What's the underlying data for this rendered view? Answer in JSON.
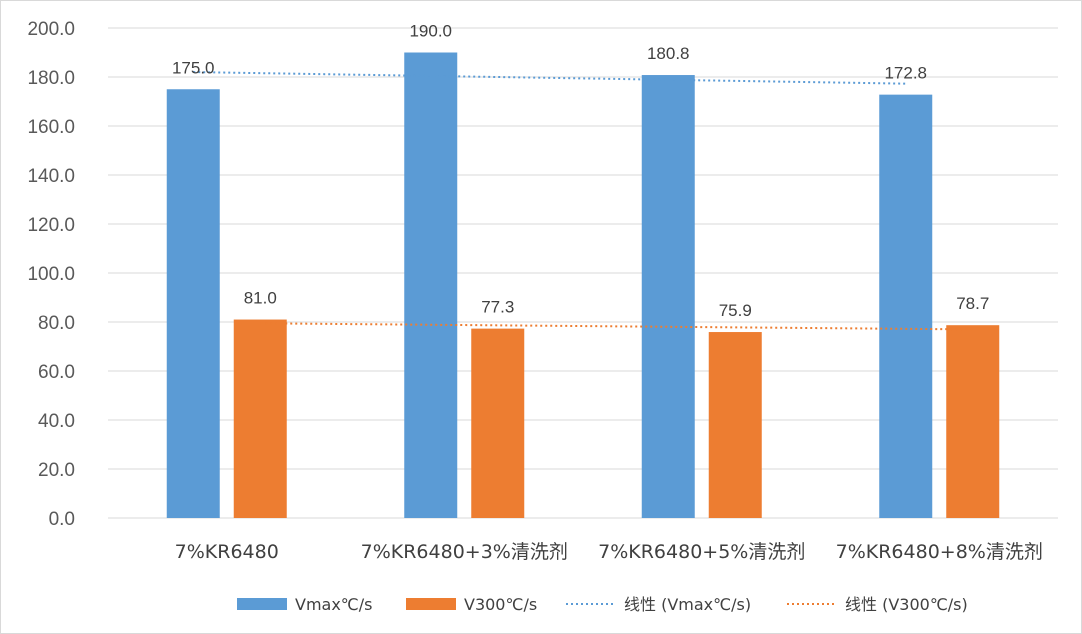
{
  "chart_data": {
    "type": "bar",
    "categories": [
      "7%KR6480",
      "7%KR6480+3%清洗剂",
      "7%KR6480+5%清洗剂",
      "7%KR6480+8%清洗剂"
    ],
    "series": [
      {
        "name": "Vmax℃/s",
        "color": "#5b9bd5",
        "values": [
          175.0,
          190.0,
          180.8,
          172.8
        ]
      },
      {
        "name": "V300℃/s",
        "color": "#ed7d31",
        "values": [
          81.0,
          77.3,
          75.9,
          78.7
        ]
      }
    ],
    "trendlines": [
      {
        "name": "线性 (Vmax℃/s)",
        "series": 0,
        "style": "dotted",
        "color": "#5b9bd5"
      },
      {
        "name": "线性 (V300℃/s)",
        "series": 1,
        "style": "dotted",
        "color": "#ed7d31"
      }
    ],
    "y_ticks": [
      "0.0",
      "20.0",
      "40.0",
      "60.0",
      "80.0",
      "100.0",
      "120.0",
      "140.0",
      "160.0",
      "180.0",
      "200.0"
    ],
    "ylim": [
      0,
      200
    ],
    "grid": true,
    "legend_position": "bottom",
    "title": "",
    "xlabel": "",
    "ylabel": ""
  }
}
